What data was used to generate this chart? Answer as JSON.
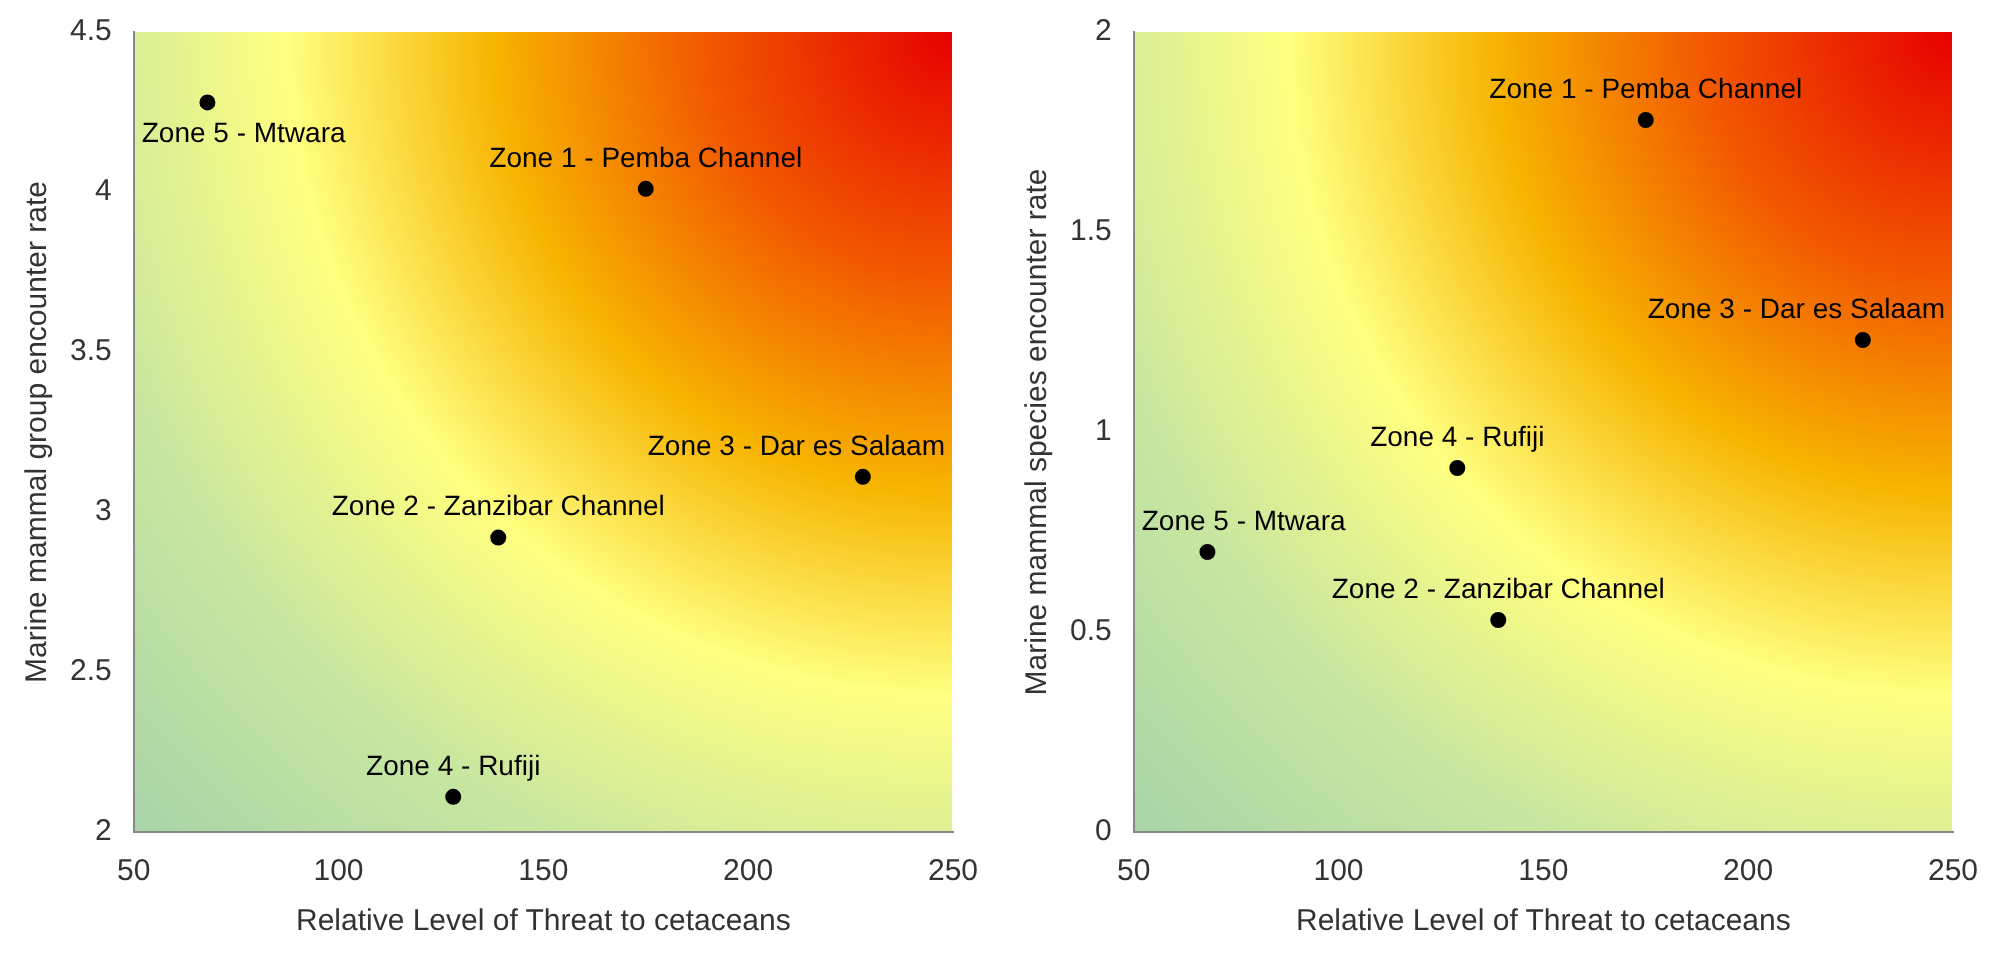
{
  "chart_data": [
    {
      "type": "scatter",
      "xlabel": "Relative Level of Threat to cetaceans",
      "ylabel": "Marine mammal group encounter rate",
      "marker": "circle",
      "series": [
        {
          "color": "#000000",
          "x": [
            175,
            139,
            228,
            128,
            68
          ],
          "values": [
            4.01,
            2.92,
            3.11,
            2.11,
            4.28
          ]
        }
      ],
      "xlim": [
        50,
        250
      ],
      "xticks": [
        50,
        100,
        150,
        200,
        250
      ],
      "ylim": [
        2,
        4.5
      ],
      "yticks": [
        2,
        2.5,
        3,
        3.5,
        4,
        4.5
      ],
      "annotations": [
        {
          "text": "Zone 1 - Pemba Channel",
          "x": 175,
          "y": 4.01
        },
        {
          "text": "Zone 2 - Zanzibar Channel",
          "x": 139,
          "y": 2.92
        },
        {
          "text": "Zone 3 - Dar es Salaam",
          "x": 228,
          "y": 3.11
        },
        {
          "text": "Zone 4 - Rufiji",
          "x": 128,
          "y": 2.11
        },
        {
          "text": "Zone 5 - Mtwara",
          "x": 68,
          "y": 4.28
        }
      ]
    },
    {
      "type": "scatter",
      "xlabel": "Relative Level of Threat to cetaceans",
      "ylabel": "Marine mammal species encounter rate",
      "marker": "circle",
      "series": [
        {
          "color": "#000000",
          "x": [
            175,
            139,
            228,
            129,
            68
          ],
          "values": [
            1.78,
            0.53,
            1.23,
            0.91,
            0.7
          ]
        }
      ],
      "xlim": [
        50,
        250
      ],
      "xticks": [
        50,
        100,
        150,
        200,
        250
      ],
      "ylim": [
        0,
        2
      ],
      "yticks": [
        0,
        0.5,
        1,
        1.5,
        2
      ],
      "annotations": [
        {
          "text": "Zone 1 - Pemba Channel",
          "x": 175,
          "y": 1.78
        },
        {
          "text": "Zone 2 - Zanzibar Channel",
          "x": 139,
          "y": 0.53
        },
        {
          "text": "Zone 3 - Dar es Salaam",
          "x": 228,
          "y": 1.23
        },
        {
          "text": "Zone 4 - Rufiji",
          "x": 129,
          "y": 0.91
        },
        {
          "text": "Zone 5 - Mtwara",
          "x": 68,
          "y": 0.7
        }
      ]
    }
  ]
}
